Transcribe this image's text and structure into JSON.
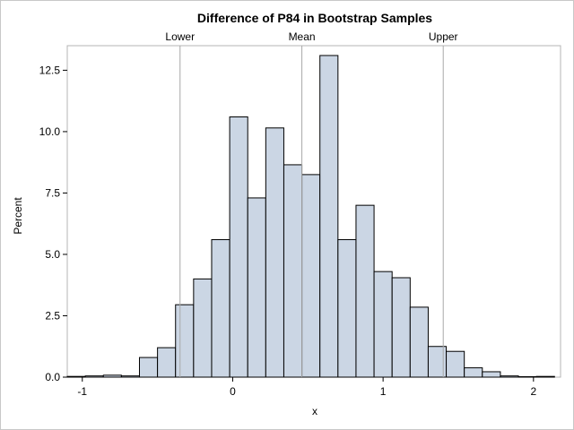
{
  "chart_data": {
    "type": "bar",
    "title": "Difference of P84 in Bootstrap Samples",
    "xlabel": "x",
    "ylabel": "Percent",
    "xlim": [
      -1.1,
      2.18
    ],
    "ylim": [
      0,
      13.5
    ],
    "xticks": [
      -1,
      0,
      1,
      2
    ],
    "yticks": [
      0.0,
      2.5,
      5.0,
      7.5,
      10.0,
      12.5
    ],
    "ytick_labels": [
      "0.0",
      "2.5",
      "5.0",
      "7.5",
      "10.0",
      "12.5"
    ],
    "bin_width": 0.12,
    "bin_left_edges": [
      -1.1,
      -0.98,
      -0.86,
      -0.74,
      -0.62,
      -0.5,
      -0.38,
      -0.26,
      -0.14,
      -0.02,
      0.1,
      0.22,
      0.34,
      0.46,
      0.58,
      0.7,
      0.82,
      0.94,
      1.06,
      1.18,
      1.3,
      1.42,
      1.54,
      1.66,
      1.78,
      1.9,
      2.02
    ],
    "values": [
      0.03,
      0.05,
      0.08,
      0.05,
      0.8,
      1.2,
      2.95,
      4.0,
      5.6,
      10.6,
      7.3,
      10.15,
      8.65,
      8.25,
      13.1,
      5.6,
      7.0,
      4.3,
      4.05,
      2.85,
      1.25,
      1.05,
      0.38,
      0.22,
      0.05,
      0.02,
      0.03
    ],
    "reference_lines": [
      {
        "label": "Lower",
        "x": -0.35
      },
      {
        "label": "Mean",
        "x": 0.46
      },
      {
        "label": "Upper",
        "x": 1.4
      }
    ],
    "bar_fill": "#cbd6e4",
    "bar_stroke": "#000000",
    "refline_color": "#a8a8a8",
    "grid": false,
    "legend": "none"
  }
}
